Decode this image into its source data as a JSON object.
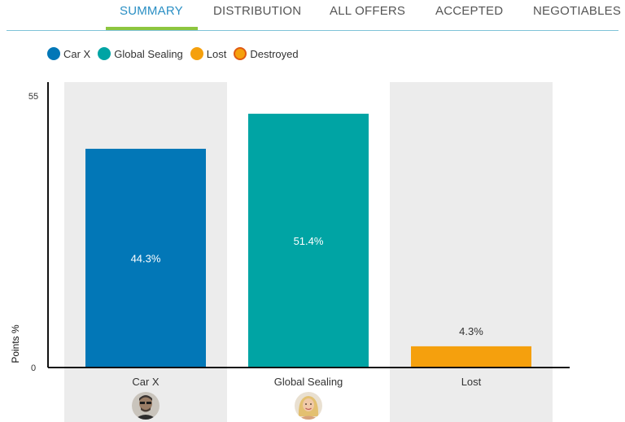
{
  "tabs": [
    {
      "label": "SUMMARY",
      "active": true
    },
    {
      "label": "DISTRIBUTION",
      "active": false
    },
    {
      "label": "ALL OFFERS",
      "active": false
    },
    {
      "label": "ACCEPTED",
      "active": false
    },
    {
      "label": "NEGOTIABLES",
      "active": false
    }
  ],
  "legend": [
    {
      "label": "Car X",
      "color": "#0277b7",
      "ring": ""
    },
    {
      "label": "Global Sealing",
      "color": "#00a4a4",
      "ring": ""
    },
    {
      "label": "Lost",
      "color": "#f5a00d",
      "ring": ""
    },
    {
      "label": "Destroyed",
      "color": "#f5a00d",
      "ring": "#e05a12"
    }
  ],
  "chart_data": {
    "type": "bar",
    "categories": [
      "Car X",
      "Global Sealing",
      "Lost"
    ],
    "values": [
      44.3,
      51.4,
      4.3
    ],
    "value_labels": [
      "44.3%",
      "51.4%",
      "4.3%"
    ],
    "colors": [
      "#0277b7",
      "#00a4a4",
      "#f5a00d"
    ],
    "ylabel": "Points %",
    "ylim": [
      0,
      55
    ],
    "yticks": [
      "0",
      "55"
    ]
  }
}
